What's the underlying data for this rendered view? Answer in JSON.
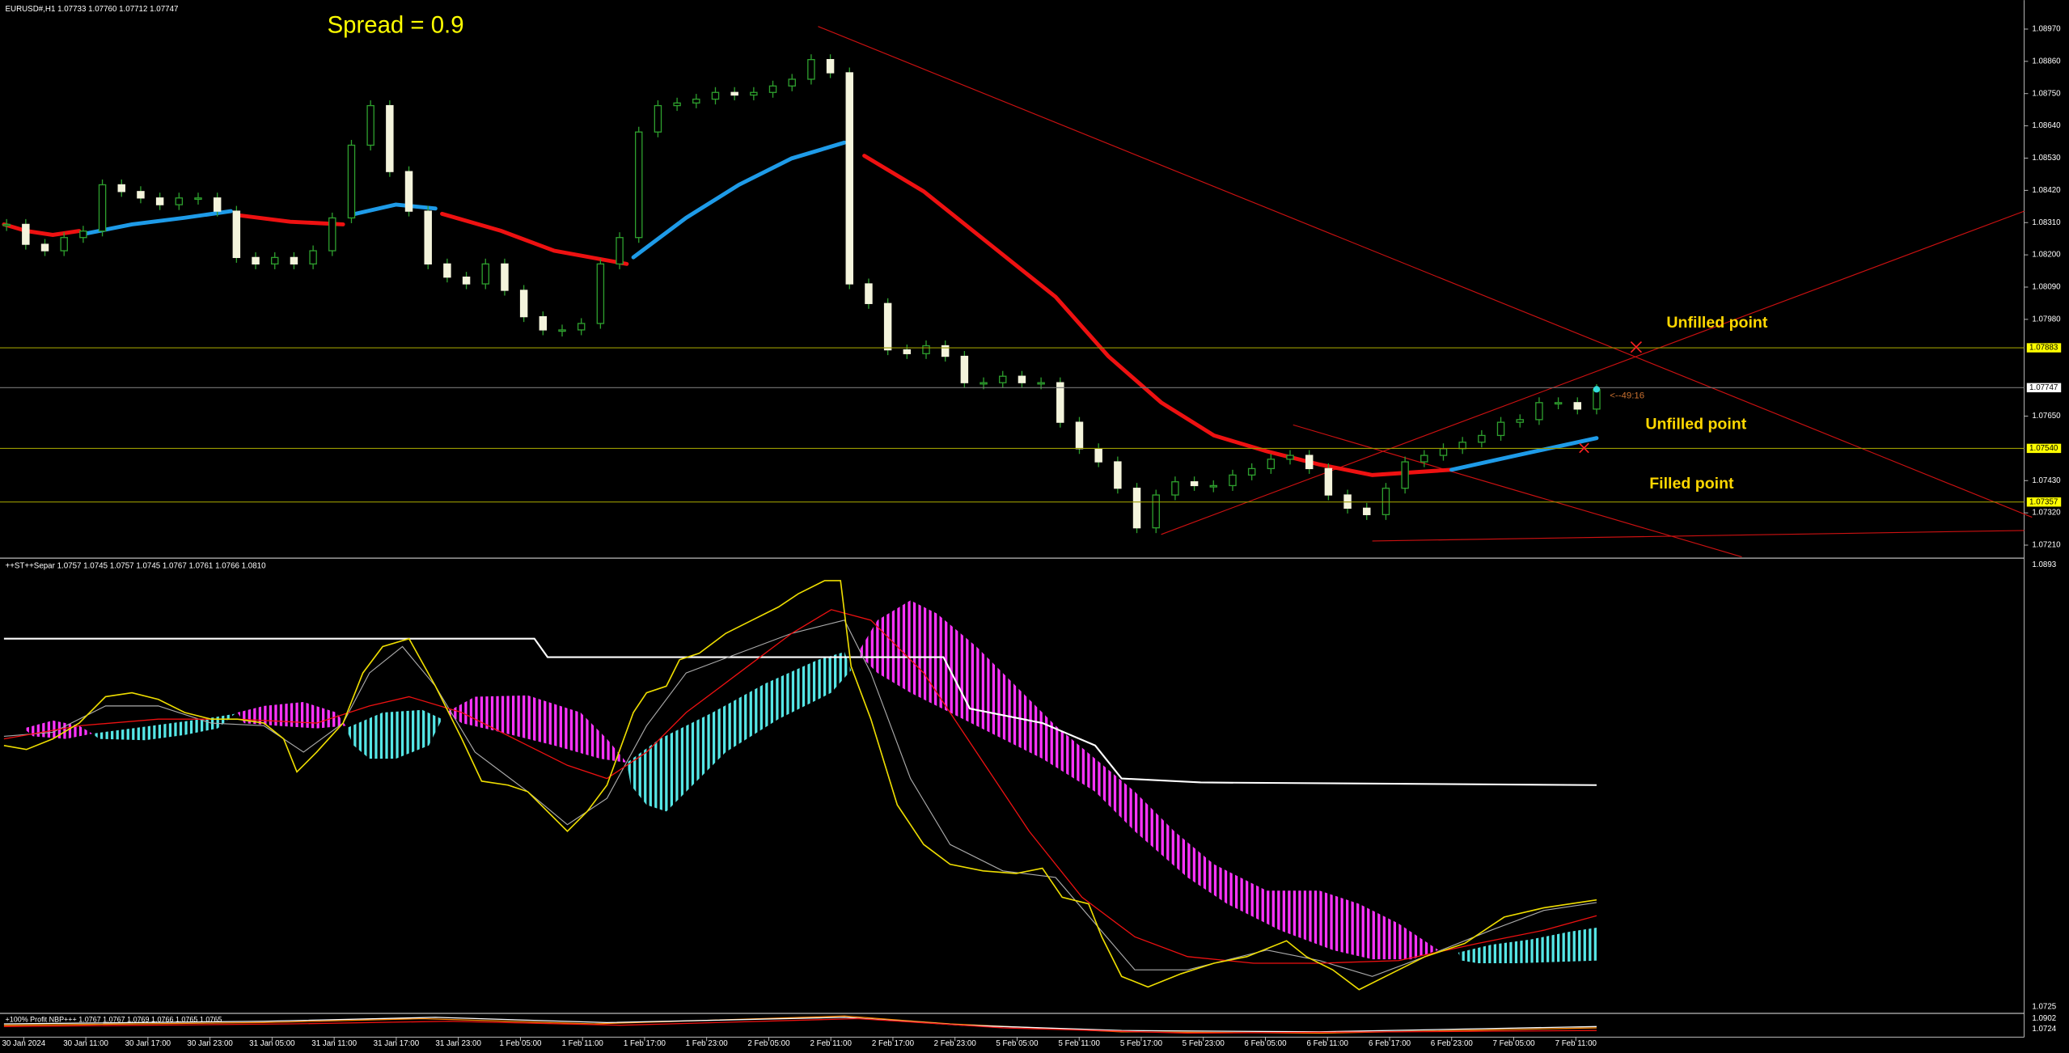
{
  "header": {
    "symbol_info": "EURUSD#,H1 1.07733 1.07760 1.07712 1.07747",
    "spread": "Spread = 0.9"
  },
  "main_chart": {
    "ylim": [
      1.0717,
      1.09069
    ],
    "price_labels": [
      "1.08970",
      "1.08860",
      "1.08750",
      "1.08640",
      "1.08530",
      "1.08420",
      "1.08310",
      "1.08200",
      "1.08090",
      "1.07980",
      "1.07650",
      "1.07430",
      "1.07320",
      "1.07210"
    ],
    "levels": [
      {
        "price": "1.07883",
        "color": "#ffff00"
      },
      {
        "price": "1.07747",
        "color": "#ffffff"
      },
      {
        "price": "1.07540",
        "color": "#ffff00"
      },
      {
        "price": "1.07357",
        "color": "#ffff00"
      }
    ],
    "closes": [
      1.08304,
      1.08236,
      1.08214,
      1.08259,
      1.08281,
      1.08439,
      1.08416,
      1.08394,
      1.08371,
      1.08394,
      1.08394,
      1.08349,
      1.08191,
      1.08169,
      1.08191,
      1.08169,
      1.08214,
      1.08326,
      1.08574,
      1.08709,
      1.08484,
      1.08349,
      1.08169,
      1.08124,
      1.08101,
      1.08169,
      1.08079,
      1.07989,
      1.07944,
      1.07944,
      1.07966,
      1.08169,
      1.08259,
      1.08619,
      1.08709,
      1.08718,
      1.08731,
      1.08754,
      1.08745,
      1.08754,
      1.08776,
      1.08799,
      1.08866,
      1.08821,
      1.08101,
      1.08034,
      1.07876,
      1.07863,
      1.0789,
      1.07854,
      1.07764,
      1.07764,
      1.07786,
      1.07764,
      1.07764,
      1.07629,
      1.07539,
      1.07494,
      1.07404,
      1.07269,
      1.07381,
      1.07426,
      1.07413,
      1.07413,
      1.07449,
      1.07471,
      1.07503,
      1.07516,
      1.07471,
      1.07381,
      1.07336,
      1.07314,
      1.07404,
      1.07494,
      1.07516,
      1.07539,
      1.07561,
      1.07584,
      1.07629,
      1.07638,
      1.07696,
      1.07696,
      1.07674,
      1.07741
    ],
    "timer": "<--49:16",
    "annotations": [
      "Unfilled  point",
      "Unfilled point",
      "Filled point"
    ]
  },
  "indicator_window": {
    "title": "++ST++Separ 1.0757 1.0745 1.0757 1.0745 1.0767 1.0761 1.0766 1.0810",
    "price_labels": [
      "1.0893",
      "1.0725"
    ]
  },
  "bottom_window": {
    "title": "+100% Profit NBP+++ 1.0767 1.0767 1.0769 1.0766 1.0765 1.0765",
    "price_labels": [
      "1.0902",
      "1.0724"
    ]
  },
  "time_axis": {
    "labels": [
      "30 Jan 2024",
      "30 Jan 11:00",
      "30 Jan 17:00",
      "30 Jan 23:00",
      "31 Jan 05:00",
      "31 Jan 11:00",
      "31 Jan 17:00",
      "31 Jan 23:00",
      "1 Feb 05:00",
      "1 Feb 11:00",
      "1 Feb 17:00",
      "1 Feb 23:00",
      "2 Feb 05:00",
      "2 Feb 11:00",
      "2 Feb 17:00",
      "2 Feb 23:00",
      "5 Feb 05:00",
      "5 Feb 11:00",
      "5 Feb 17:00",
      "5 Feb 23:00",
      "6 Feb 05:00",
      "6 Feb 11:00",
      "6 Feb 17:00",
      "6 Feb 23:00",
      "7 Feb 05:00",
      "7 Feb 11:00"
    ]
  }
}
